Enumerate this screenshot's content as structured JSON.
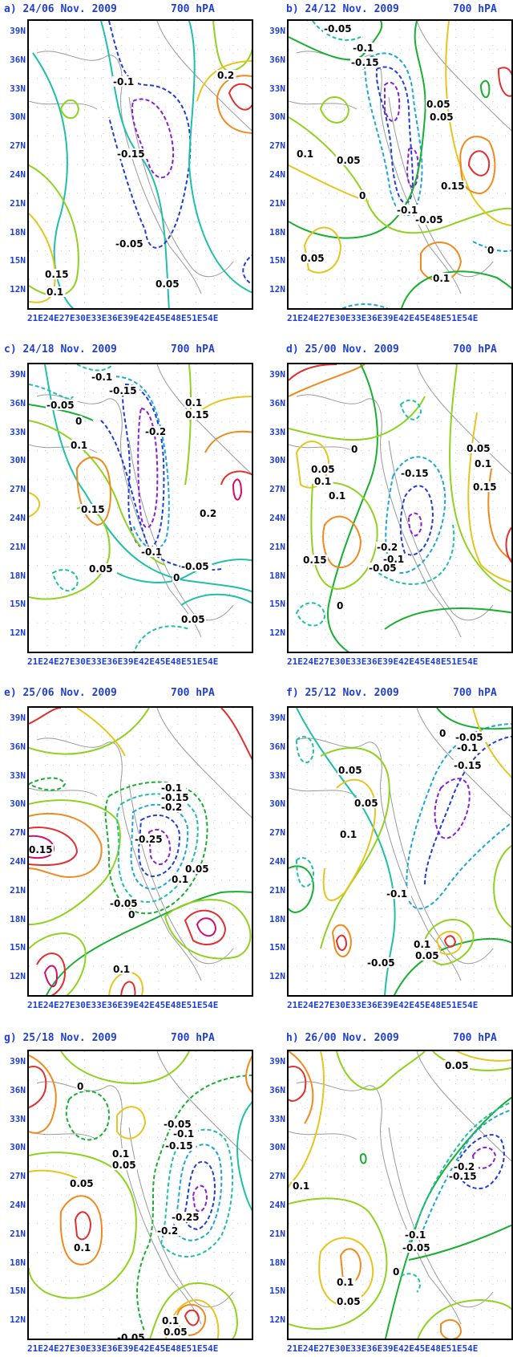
{
  "level_label": "700 hPA",
  "lat_labels": [
    "39N",
    "36N",
    "33N",
    "30N",
    "27N",
    "24N",
    "21N",
    "18N",
    "15N",
    "12N"
  ],
  "lon_axis_text": "21E24E27E30E33E36E39E42E45E48E51E54E",
  "panels": [
    {
      "id": "a",
      "title": "a) 24/06 Nov. 2009",
      "labels": [
        "-0.1",
        "-0.15",
        "-0.05",
        "0.2",
        "0.15",
        "0.1",
        "0.05"
      ]
    },
    {
      "id": "b",
      "title": "b) 24/12 Nov. 2009",
      "labels": [
        "-0.05",
        "-0.1",
        "-0.15",
        "0.05",
        "0.05",
        "0.1",
        "0.05",
        "0",
        "-0.1",
        "-0.05",
        "0.15",
        "0.05",
        "0",
        "0.1"
      ]
    },
    {
      "id": "c",
      "title": "c) 24/18 Nov. 2009",
      "labels": [
        "-0.1",
        "-0.15",
        "-0.05",
        "0",
        "-0.2",
        "0.1",
        "0.15",
        "0.1",
        "0.15",
        "0.2",
        "-0.1",
        "0.05",
        "-0.05",
        "0",
        "0.05"
      ]
    },
    {
      "id": "d",
      "title": "d) 25/00 Nov. 2009",
      "labels": [
        "0",
        "0.05",
        "0.1",
        "0.1",
        "-0.15",
        "0.05",
        "0.1",
        "0.15",
        "-0.2",
        "0.15",
        "-0.1",
        "-0.05",
        "0"
      ]
    },
    {
      "id": "e",
      "title": "e) 25/06 Nov. 2009",
      "labels": [
        "-0.1",
        "-0.15",
        "-0.2",
        "-0.25",
        "0.15",
        "0.05",
        "0.1",
        "-0.05",
        "0",
        "0.1"
      ]
    },
    {
      "id": "f",
      "title": "f) 25/12 Nov. 2009",
      "labels": [
        "0",
        "-0.05",
        "-0.1",
        "-0.15",
        "0.05",
        "0.05",
        "0.1",
        "-0.1",
        "0.1",
        "0.05",
        "-0.05"
      ]
    },
    {
      "id": "g",
      "title": "g) 25/18 Nov. 2009",
      "labels": [
        "0",
        "-0.05",
        "-0.1",
        "-0.15",
        "0.1",
        "0.05",
        "0.05",
        "-0.25",
        "-0.2",
        "0.1",
        "0.1",
        "0.05",
        "-0.05"
      ]
    },
    {
      "id": "h",
      "title": "h) 26/00 Nov. 2009",
      "labels": [
        "0.05",
        "-0.2",
        "-0.15",
        "0.1",
        "-0.1",
        "-0.05",
        "0",
        "0.1",
        "0.05"
      ]
    }
  ],
  "colors": {
    "axis_text": "#1f3fd6",
    "neg_deep": "#8a1fd0",
    "neg_strong": "#1f3fd6",
    "neg_mid": "#1fa6d8",
    "neg_weak": "#20c0a8",
    "zero": "#18b030",
    "pos_weak": "#8fd21f",
    "pos_mid": "#e6c51e",
    "pos_strong": "#f08a1e",
    "pos_deep": "#e03030",
    "pos_max": "#d0106a",
    "coast": "#9a9a9a",
    "grid": "#c8c8c8"
  }
}
